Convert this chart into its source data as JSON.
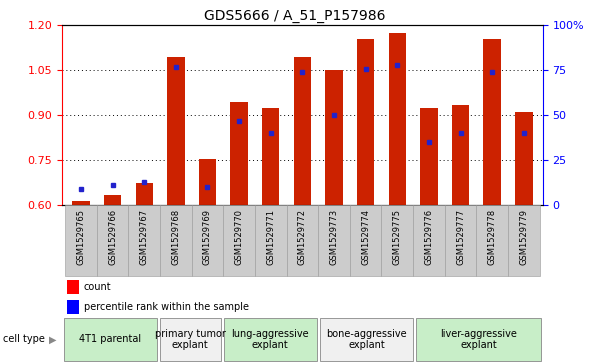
{
  "title": "GDS5666 / A_51_P157986",
  "samples": [
    "GSM1529765",
    "GSM1529766",
    "GSM1529767",
    "GSM1529768",
    "GSM1529769",
    "GSM1529770",
    "GSM1529771",
    "GSM1529772",
    "GSM1529773",
    "GSM1529774",
    "GSM1529775",
    "GSM1529776",
    "GSM1529777",
    "GSM1529778",
    "GSM1529779"
  ],
  "red_values": [
    0.615,
    0.635,
    0.675,
    1.095,
    0.755,
    0.945,
    0.925,
    1.095,
    1.05,
    1.155,
    1.175,
    0.925,
    0.935,
    1.155,
    0.91
  ],
  "blue_pct": [
    9,
    11,
    13,
    77,
    10,
    47,
    40,
    74,
    50,
    76,
    78,
    35,
    40,
    74,
    40
  ],
  "cell_types": [
    {
      "label": "4T1 parental",
      "start": 0,
      "end": 3,
      "color": "#c8eec8"
    },
    {
      "label": "primary tumor\nexplant",
      "start": 3,
      "end": 5,
      "color": "#f0f0f0"
    },
    {
      "label": "lung-aggressive\nexplant",
      "start": 5,
      "end": 8,
      "color": "#c8eec8"
    },
    {
      "label": "bone-aggressive\nexplant",
      "start": 8,
      "end": 11,
      "color": "#f0f0f0"
    },
    {
      "label": "liver-aggressive\nexplant",
      "start": 11,
      "end": 15,
      "color": "#c8eec8"
    }
  ],
  "ylim_left": [
    0.6,
    1.2
  ],
  "ylim_right": [
    0.0,
    100.0
  ],
  "yticks_left": [
    0.6,
    0.75,
    0.9,
    1.05,
    1.2
  ],
  "yticks_right": [
    0,
    25,
    50,
    75,
    100
  ],
  "bar_color": "#cc2200",
  "dot_color": "#2222cc",
  "title_fontsize": 10,
  "tick_label_fontsize": 6,
  "cell_type_fontsize": 7
}
